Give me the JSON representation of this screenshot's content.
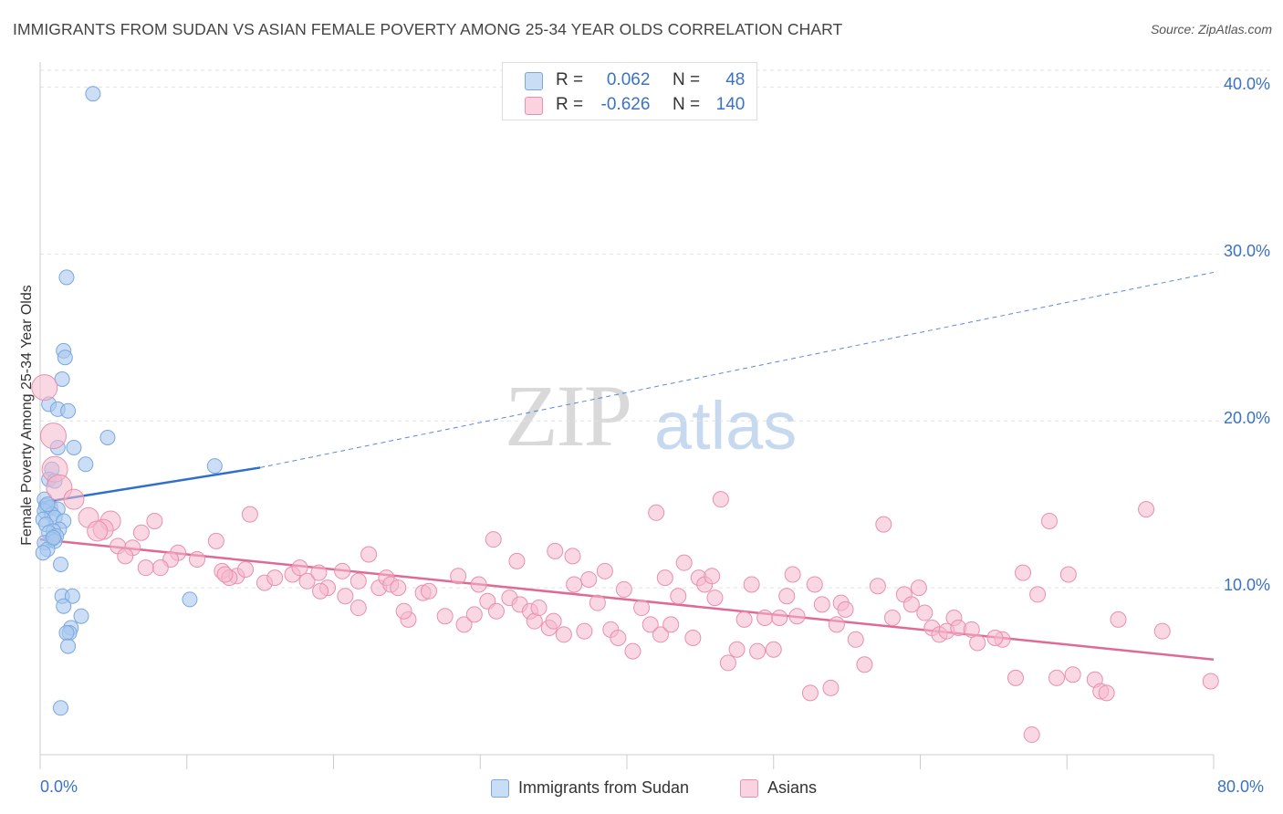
{
  "title": "IMMIGRANTS FROM SUDAN VS ASIAN FEMALE POVERTY AMONG 25-34 YEAR OLDS CORRELATION CHART",
  "source": "Source: ZipAtlas.com",
  "watermark": {
    "zip": "ZIP",
    "atlas": "atlas"
  },
  "legend_top": {
    "rows": [
      {
        "r_label": "R =",
        "r_value": "0.062",
        "n_label": "N =",
        "n_value": "48",
        "color": "#a8c8f0"
      },
      {
        "r_label": "R =",
        "r_value": "-0.626",
        "n_label": "N =",
        "n_value": "140",
        "color": "#f5b8cc"
      }
    ]
  },
  "legend_bottom": {
    "items": [
      {
        "label": "Immigrants from Sudan",
        "color": "#a8c8f0"
      },
      {
        "label": "Asians",
        "color": "#f5b8cc"
      }
    ]
  },
  "colors": {
    "sudan_fill": "#a8c8f0",
    "sudan_stroke": "#7aa8dc",
    "sudan_line": "#2f6fcc",
    "asian_fill": "#f5b8cc",
    "asian_stroke": "#e890ac",
    "asian_line": "#e06a96",
    "grid": "#e2e2e2",
    "axis_label": "#3a72c4"
  },
  "chart_data": {
    "type": "scatter",
    "title": "IMMIGRANTS FROM SUDAN VS ASIAN FEMALE POVERTY AMONG 25-34 YEAR OLDS CORRELATION CHART",
    "xlabel": "",
    "ylabel": "Female Poverty Among 25-34 Year Olds",
    "xlim": [
      0,
      80
    ],
    "ylim": [
      0,
      41.5
    ],
    "x_tick_labels": [
      "0.0%",
      "80.0%"
    ],
    "y_ticks": [
      10,
      20,
      30,
      40
    ],
    "y_tick_labels": [
      "10.0%",
      "20.0%",
      "30.0%",
      "40.0%"
    ],
    "grid": true,
    "legend_position": "top-center",
    "series": [
      {
        "name": "Immigrants from Sudan",
        "r": 0.062,
        "n": 48,
        "trend": {
          "x0": 0,
          "y0": 15.1,
          "x1": 15,
          "y1": 17.2,
          "extended_x1": 80,
          "extended_y1": 28.9
        },
        "points": [
          [
            3.6,
            39.6
          ],
          [
            1.8,
            28.6
          ],
          [
            1.6,
            24.2
          ],
          [
            1.7,
            23.8
          ],
          [
            1.5,
            22.5
          ],
          [
            0.6,
            21.0
          ],
          [
            1.2,
            20.7
          ],
          [
            1.9,
            20.6
          ],
          [
            4.6,
            19.0
          ],
          [
            1.2,
            18.4
          ],
          [
            2.3,
            18.4
          ],
          [
            3.1,
            17.4
          ],
          [
            11.9,
            17.3
          ],
          [
            0.8,
            17.1
          ],
          [
            0.6,
            16.5
          ],
          [
            1.0,
            16.4
          ],
          [
            0.3,
            15.3
          ],
          [
            0.4,
            14.9
          ],
          [
            0.7,
            14.8
          ],
          [
            1.2,
            14.7
          ],
          [
            0.3,
            14.6
          ],
          [
            0.8,
            14.4
          ],
          [
            1.0,
            14.2
          ],
          [
            0.2,
            14.1
          ],
          [
            1.6,
            14.0
          ],
          [
            0.4,
            13.8
          ],
          [
            1.3,
            13.5
          ],
          [
            0.9,
            13.4
          ],
          [
            0.6,
            13.3
          ],
          [
            1.1,
            13.1
          ],
          [
            0.8,
            12.9
          ],
          [
            0.3,
            12.7
          ],
          [
            1.0,
            12.8
          ],
          [
            0.5,
            12.3
          ],
          [
            0.2,
            12.1
          ],
          [
            1.4,
            11.4
          ],
          [
            1.5,
            9.5
          ],
          [
            2.2,
            9.5
          ],
          [
            10.2,
            9.3
          ],
          [
            1.6,
            8.9
          ],
          [
            2.8,
            8.3
          ],
          [
            2.1,
            7.6
          ],
          [
            2.0,
            7.3
          ],
          [
            1.8,
            7.3
          ],
          [
            1.9,
            6.5
          ],
          [
            1.4,
            2.8
          ],
          [
            0.5,
            15.0
          ],
          [
            0.9,
            13.0
          ]
        ]
      },
      {
        "name": "Asians",
        "r": -0.626,
        "n": 140,
        "trend": {
          "x0": 0,
          "y0": 12.9,
          "x1": 80,
          "y1": 5.7
        },
        "points": [
          [
            0.3,
            22.0
          ],
          [
            0.9,
            19.1
          ],
          [
            1.0,
            17.1
          ],
          [
            1.3,
            16.0
          ],
          [
            2.3,
            15.3
          ],
          [
            3.3,
            14.2
          ],
          [
            4.8,
            14.0
          ],
          [
            7.8,
            14.0
          ],
          [
            14.3,
            14.4
          ],
          [
            4.3,
            13.5
          ],
          [
            3.9,
            13.4
          ],
          [
            6.9,
            13.3
          ],
          [
            5.3,
            12.5
          ],
          [
            12.0,
            12.8
          ],
          [
            6.3,
            12.4
          ],
          [
            9.4,
            12.1
          ],
          [
            5.8,
            11.9
          ],
          [
            8.9,
            11.7
          ],
          [
            10.7,
            11.7
          ],
          [
            8.2,
            11.2
          ],
          [
            7.2,
            11.2
          ],
          [
            12.4,
            11.0
          ],
          [
            13.4,
            10.7
          ],
          [
            14.0,
            11.1
          ],
          [
            12.9,
            10.6
          ],
          [
            12.6,
            10.8
          ],
          [
            15.3,
            10.3
          ],
          [
            16.0,
            10.6
          ],
          [
            17.2,
            10.8
          ],
          [
            18.2,
            10.4
          ],
          [
            17.7,
            11.2
          ],
          [
            19.0,
            10.9
          ],
          [
            19.6,
            10.0
          ],
          [
            20.6,
            11.0
          ],
          [
            20.8,
            9.5
          ],
          [
            21.7,
            10.4
          ],
          [
            22.4,
            12.0
          ],
          [
            21.7,
            8.8
          ],
          [
            23.1,
            10.0
          ],
          [
            23.6,
            10.6
          ],
          [
            23.9,
            10.2
          ],
          [
            24.4,
            10.0
          ],
          [
            25.1,
            8.1
          ],
          [
            26.1,
            9.7
          ],
          [
            26.5,
            9.8
          ],
          [
            27.6,
            8.3
          ],
          [
            28.5,
            10.7
          ],
          [
            28.9,
            7.8
          ],
          [
            29.9,
            10.2
          ],
          [
            30.5,
            9.2
          ],
          [
            31.1,
            8.6
          ],
          [
            30.9,
            12.9
          ],
          [
            32.0,
            9.4
          ],
          [
            32.5,
            11.6
          ],
          [
            32.7,
            9.0
          ],
          [
            33.4,
            8.6
          ],
          [
            33.7,
            8.0
          ],
          [
            34.0,
            8.8
          ],
          [
            34.7,
            7.6
          ],
          [
            35.0,
            8.0
          ],
          [
            35.7,
            7.2
          ],
          [
            35.1,
            12.2
          ],
          [
            36.3,
            11.9
          ],
          [
            37.1,
            7.4
          ],
          [
            37.4,
            10.5
          ],
          [
            38.0,
            9.1
          ],
          [
            38.5,
            11.0
          ],
          [
            38.9,
            7.5
          ],
          [
            39.4,
            7.0
          ],
          [
            39.8,
            9.9
          ],
          [
            40.4,
            6.2
          ],
          [
            41.0,
            8.8
          ],
          [
            41.6,
            7.8
          ],
          [
            42.0,
            14.5
          ],
          [
            42.3,
            7.2
          ],
          [
            43.0,
            7.8
          ],
          [
            42.6,
            10.6
          ],
          [
            43.5,
            9.5
          ],
          [
            43.9,
            11.5
          ],
          [
            44.5,
            7.0
          ],
          [
            44.9,
            10.6
          ],
          [
            45.3,
            10.2
          ],
          [
            45.8,
            10.7
          ],
          [
            46.0,
            9.4
          ],
          [
            46.4,
            15.3
          ],
          [
            46.9,
            5.5
          ],
          [
            47.5,
            6.3
          ],
          [
            48.0,
            8.1
          ],
          [
            48.5,
            10.2
          ],
          [
            48.9,
            6.2
          ],
          [
            49.4,
            8.2
          ],
          [
            50.0,
            6.3
          ],
          [
            50.4,
            8.2
          ],
          [
            50.9,
            9.5
          ],
          [
            51.3,
            10.8
          ],
          [
            51.6,
            8.3
          ],
          [
            52.5,
            3.7
          ],
          [
            52.8,
            10.2
          ],
          [
            53.3,
            9.0
          ],
          [
            53.9,
            4.0
          ],
          [
            54.3,
            7.8
          ],
          [
            54.6,
            9.1
          ],
          [
            54.9,
            8.7
          ],
          [
            55.6,
            6.9
          ],
          [
            56.2,
            5.4
          ],
          [
            57.1,
            10.1
          ],
          [
            57.5,
            13.8
          ],
          [
            58.1,
            8.2
          ],
          [
            58.9,
            9.6
          ],
          [
            59.4,
            9.0
          ],
          [
            59.9,
            10.0
          ],
          [
            60.3,
            8.5
          ],
          [
            60.8,
            7.6
          ],
          [
            61.3,
            7.2
          ],
          [
            61.8,
            7.4
          ],
          [
            62.3,
            8.2
          ],
          [
            62.6,
            7.6
          ],
          [
            63.5,
            7.5
          ],
          [
            63.9,
            6.7
          ],
          [
            65.6,
            6.9
          ],
          [
            66.5,
            4.6
          ],
          [
            67.6,
            1.2
          ],
          [
            68.0,
            9.6
          ],
          [
            68.8,
            14.0
          ],
          [
            69.3,
            4.6
          ],
          [
            70.1,
            10.8
          ],
          [
            70.4,
            4.8
          ],
          [
            71.9,
            4.5
          ],
          [
            72.3,
            3.8
          ],
          [
            72.7,
            3.7
          ],
          [
            73.5,
            8.1
          ],
          [
            75.4,
            14.7
          ],
          [
            79.8,
            4.4
          ],
          [
            76.5,
            7.4
          ],
          [
            65.1,
            7.0
          ],
          [
            67.0,
            10.9
          ],
          [
            24.8,
            8.6
          ],
          [
            29.6,
            8.4
          ],
          [
            36.4,
            10.2
          ],
          [
            19.1,
            9.8
          ]
        ]
      }
    ]
  }
}
